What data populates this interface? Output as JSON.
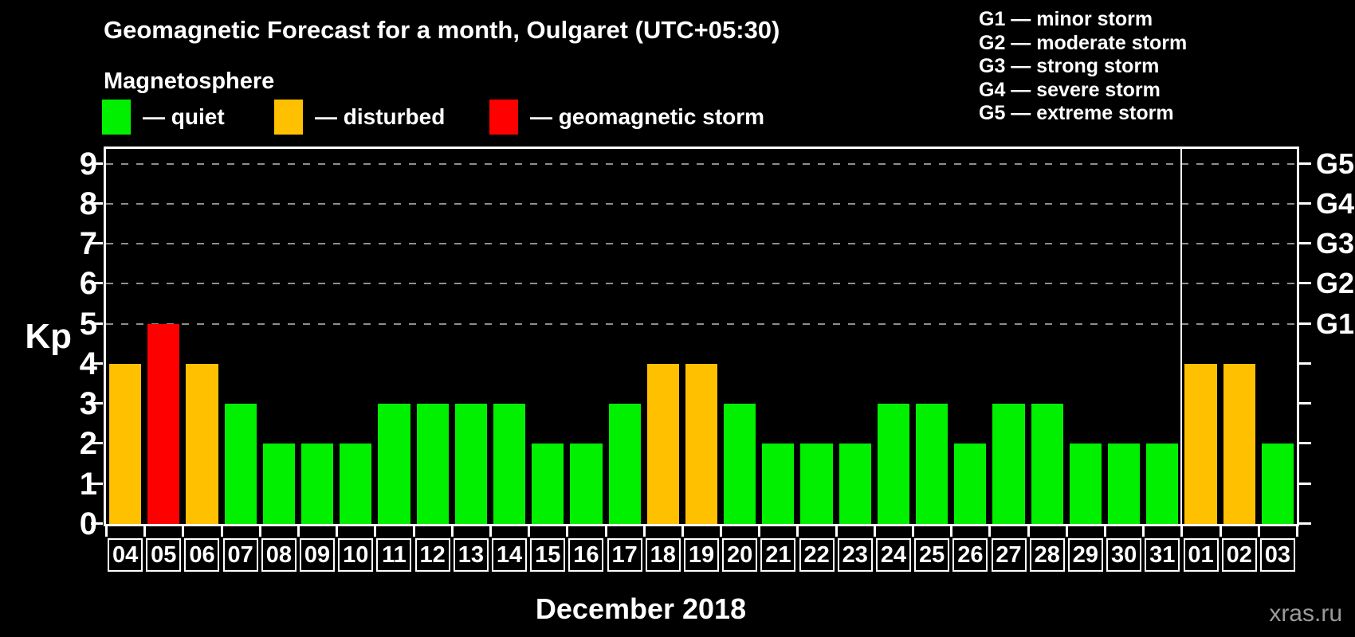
{
  "header": {
    "title": "Geomagnetic Forecast for a month, Oulgaret (UTC+05:30)",
    "subtitle": "Magnetosphere"
  },
  "legend": {
    "items": [
      {
        "status": "quiet",
        "label": "— quiet",
        "color": "#00f000"
      },
      {
        "status": "disturbed",
        "label": "— disturbed",
        "color": "#ffc000"
      },
      {
        "status": "storm",
        "label": "— geomagnetic storm",
        "color": "#ff0000"
      }
    ]
  },
  "g_legend": {
    "items": [
      "G1 — minor storm",
      "G2 — moderate storm",
      "G3 — strong storm",
      "G4 — severe storm",
      "G5 — extreme storm"
    ]
  },
  "axes": {
    "ylabel": "Kp",
    "yticks": [
      0,
      1,
      2,
      3,
      4,
      5,
      6,
      7,
      8,
      9
    ],
    "ylim": [
      0,
      9.37
    ],
    "grid_levels": [
      5,
      6,
      7,
      8,
      9
    ],
    "right_labels": [
      {
        "level": 5,
        "label": "G1"
      },
      {
        "level": 6,
        "label": "G2"
      },
      {
        "level": 7,
        "label": "G3"
      },
      {
        "level": 8,
        "label": "G4"
      },
      {
        "level": 9,
        "label": "G5"
      }
    ]
  },
  "chart_data": {
    "type": "bar",
    "title": "Geomagnetic Forecast for a month, Oulgaret (UTC+05:30)",
    "xlabel": "December 2018",
    "ylabel": "Kp",
    "ylim": [
      0,
      9.37
    ],
    "grid": "dashed horizontal at Kp 5-9",
    "categories": [
      "04",
      "05",
      "06",
      "07",
      "08",
      "09",
      "10",
      "11",
      "12",
      "13",
      "14",
      "15",
      "16",
      "17",
      "18",
      "19",
      "20",
      "21",
      "22",
      "23",
      "24",
      "25",
      "26",
      "27",
      "28",
      "29",
      "30",
      "31",
      "01",
      "02",
      "03"
    ],
    "values": [
      4,
      5,
      4,
      3,
      2,
      2,
      2,
      3,
      3,
      3,
      3,
      2,
      2,
      3,
      4,
      4,
      3,
      2,
      2,
      2,
      3,
      3,
      2,
      3,
      3,
      2,
      2,
      2,
      4,
      4,
      2
    ],
    "statuses": [
      "disturbed",
      "storm",
      "disturbed",
      "quiet",
      "quiet",
      "quiet",
      "quiet",
      "quiet",
      "quiet",
      "quiet",
      "quiet",
      "quiet",
      "quiet",
      "quiet",
      "disturbed",
      "disturbed",
      "quiet",
      "quiet",
      "quiet",
      "quiet",
      "quiet",
      "quiet",
      "quiet",
      "quiet",
      "quiet",
      "quiet",
      "quiet",
      "quiet",
      "disturbed",
      "disturbed",
      "quiet"
    ],
    "separator_after_index": 27
  },
  "footer": {
    "watermark": "xras.ru"
  }
}
